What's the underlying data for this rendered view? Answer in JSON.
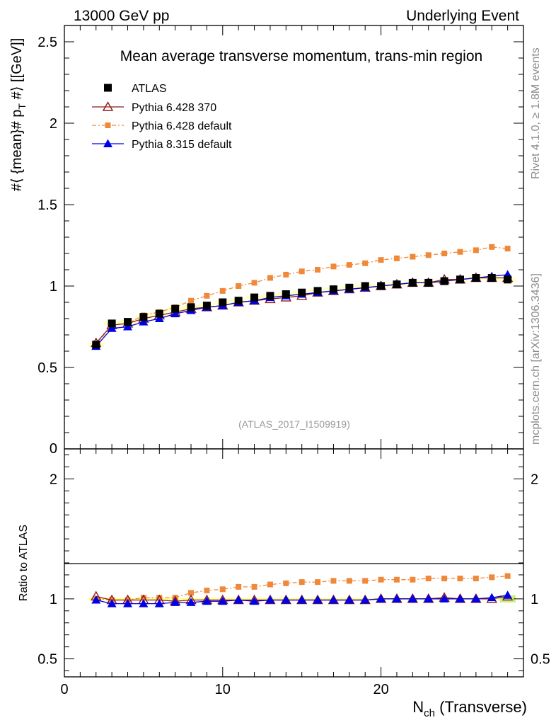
{
  "header": {
    "left": "13000 GeV pp",
    "right": "Underlying Event"
  },
  "side_labels": {
    "rivet": "Rivet 4.1.0, ≥ 1.8M events",
    "mcplots": "mcplots.cern.ch [arXiv:1306.3436]"
  },
  "chart_data": [
    {
      "type": "scatter",
      "panel": "main",
      "title": "Mean average transverse momentum, trans-min region",
      "ylabel": "#⟨ {mean}# p_T #⟩ [[GeV]]",
      "watermark": "(ATLAS_2017_I1509919)",
      "xlim": [
        0,
        29
      ],
      "ylim": [
        0,
        2.6
      ],
      "yticks": [
        {
          "v": 0.5,
          "label": "0.5"
        },
        {
          "v": 1,
          "label": "1"
        },
        {
          "v": 1.5,
          "label": "1.5"
        },
        {
          "v": 2,
          "label": "2"
        },
        {
          "v": 2.5,
          "label": "2.5"
        }
      ],
      "legend_position": "top-left",
      "x": [
        2,
        3,
        4,
        5,
        6,
        7,
        8,
        9,
        10,
        11,
        12,
        13,
        14,
        15,
        16,
        17,
        18,
        19,
        20,
        21,
        22,
        23,
        24,
        25,
        26,
        27,
        28
      ],
      "series": [
        {
          "name": "ATLAS",
          "style": "data",
          "color": "#000000",
          "values": [
            0.64,
            0.77,
            0.78,
            0.81,
            0.83,
            0.86,
            0.87,
            0.88,
            0.9,
            0.91,
            0.93,
            0.94,
            0.95,
            0.96,
            0.97,
            0.98,
            0.99,
            1.0,
            1.0,
            1.01,
            1.02,
            1.02,
            1.03,
            1.04,
            1.05,
            1.05,
            1.04
          ]
        },
        {
          "name": "Pythia 6.428 370",
          "style": "open-triangle",
          "color": "#8b1a1a",
          "values": [
            0.65,
            0.76,
            0.77,
            0.8,
            0.82,
            0.84,
            0.86,
            0.87,
            0.88,
            0.9,
            0.91,
            0.92,
            0.93,
            0.94,
            0.96,
            0.97,
            0.98,
            0.99,
            1.0,
            1.01,
            1.02,
            1.02,
            1.04,
            1.04,
            1.05,
            1.05,
            1.05
          ]
        },
        {
          "name": "Pythia 6.428 default",
          "style": "dash-square",
          "color": "#f0883a",
          "values": [
            0.64,
            0.76,
            0.77,
            0.82,
            0.84,
            0.87,
            0.91,
            0.94,
            0.97,
            1.0,
            1.02,
            1.05,
            1.07,
            1.09,
            1.1,
            1.12,
            1.13,
            1.14,
            1.16,
            1.17,
            1.18,
            1.19,
            1.2,
            1.21,
            1.22,
            1.24,
            1.23
          ]
        },
        {
          "name": "Pythia 8.315 default",
          "style": "filled-triangle",
          "color": "#0000e6",
          "values": [
            0.63,
            0.74,
            0.75,
            0.78,
            0.8,
            0.83,
            0.85,
            0.87,
            0.88,
            0.9,
            0.91,
            0.93,
            0.94,
            0.95,
            0.96,
            0.97,
            0.98,
            0.99,
            1.0,
            1.01,
            1.02,
            1.02,
            1.03,
            1.04,
            1.05,
            1.06,
            1.07
          ]
        }
      ]
    },
    {
      "type": "scatter",
      "panel": "ratio",
      "ylabel": "Ratio to ATLAS",
      "xlabel": "N_ch (Transverse)",
      "xlim": [
        0,
        29
      ],
      "ylim": [
        0.35,
        2.25
      ],
      "yticks": [
        {
          "v": 0.5,
          "label": "0.5"
        },
        {
          "v": 1,
          "label": "1"
        },
        {
          "v": 2,
          "label": "2"
        }
      ],
      "xticks": [
        {
          "v": 0,
          "label": "0"
        },
        {
          "v": 10,
          "label": "10"
        },
        {
          "v": 20,
          "label": "20"
        }
      ],
      "x": [
        2,
        3,
        4,
        5,
        6,
        7,
        8,
        9,
        10,
        11,
        12,
        13,
        14,
        15,
        16,
        17,
        18,
        19,
        20,
        21,
        22,
        23,
        24,
        25,
        26,
        27,
        28
      ],
      "series": [
        {
          "name": "Pythia 6.428 370",
          "style": "open-triangle",
          "color": "#8b1a1a",
          "values": [
            1.02,
            0.99,
            0.99,
            0.99,
            0.99,
            0.98,
            0.99,
            0.99,
            0.99,
            0.99,
            0.99,
            0.99,
            0.99,
            0.99,
            0.99,
            0.99,
            0.99,
            0.99,
            1.0,
            1.0,
            1.0,
            1.0,
            1.01,
            1.0,
            1.0,
            1.0,
            1.02
          ]
        },
        {
          "name": "Pythia 6.428 default",
          "style": "dash-square",
          "color": "#f0883a",
          "values": [
            1.0,
            0.99,
            0.99,
            1.01,
            1.01,
            1.01,
            1.05,
            1.07,
            1.08,
            1.1,
            1.1,
            1.12,
            1.13,
            1.14,
            1.14,
            1.15,
            1.15,
            1.15,
            1.16,
            1.16,
            1.16,
            1.17,
            1.17,
            1.17,
            1.17,
            1.18,
            1.19
          ]
        },
        {
          "name": "Pythia 8.315 default",
          "style": "filled-triangle",
          "color": "#0000e6",
          "values": [
            0.99,
            0.96,
            0.96,
            0.96,
            0.96,
            0.97,
            0.97,
            0.98,
            0.98,
            0.99,
            0.98,
            0.99,
            0.99,
            0.99,
            0.99,
            0.99,
            0.99,
            0.99,
            1.0,
            1.0,
            1.0,
            1.0,
            1.0,
            1.0,
            1.0,
            1.01,
            1.03
          ]
        }
      ]
    }
  ]
}
